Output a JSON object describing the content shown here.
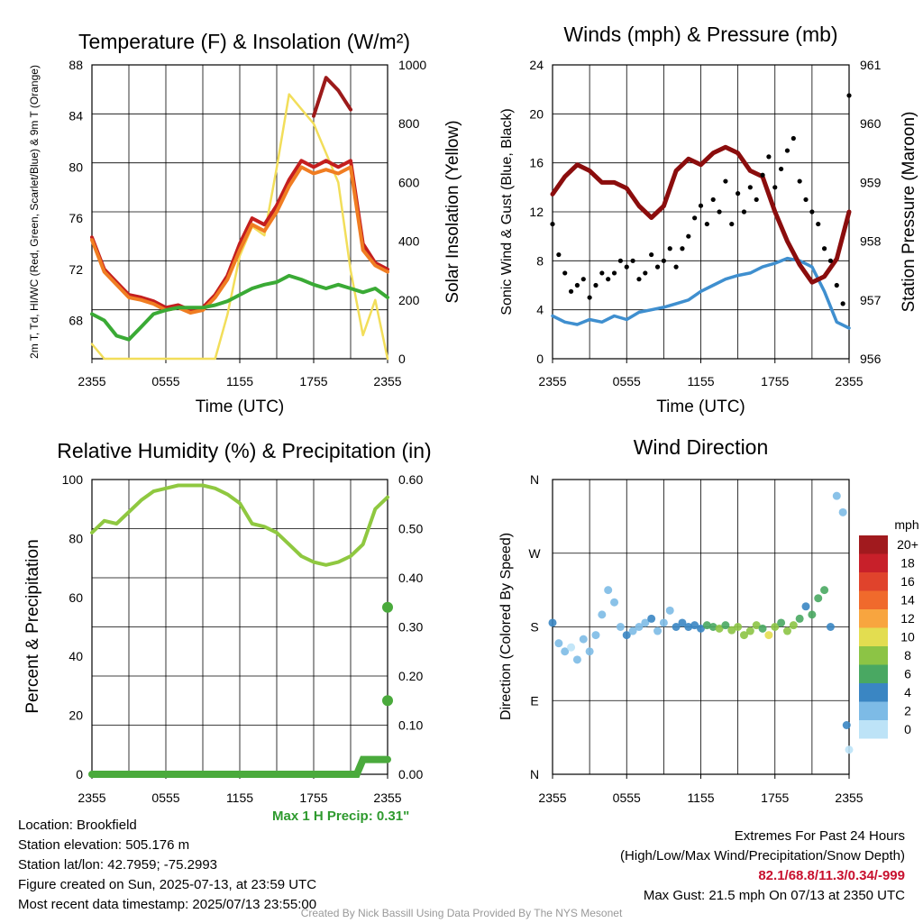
{
  "chart_data": [
    {
      "type": "line",
      "title": "Temperature (F) & Insolation (W/m²)",
      "xlabel": "Time (UTC)",
      "ylabel": "2m T, Td, HI/WC (Red, Green, Scarlet/Blue) & 9m T (Orange)",
      "y2label": "Solar Insolation (Yellow)",
      "xticks": [
        "2355",
        "0555",
        "1155",
        "1755",
        "2355"
      ],
      "ylim": [
        65,
        88
      ],
      "yticks": [
        68,
        72,
        76,
        80,
        84,
        88
      ],
      "y2lim": [
        0,
        1000
      ],
      "y2ticks": [
        0,
        200,
        400,
        600,
        800,
        1000
      ],
      "x_hours": [
        0,
        1,
        2,
        3,
        4,
        5,
        6,
        7,
        8,
        9,
        10,
        11,
        12,
        13,
        14,
        15,
        16,
        17,
        18,
        19,
        20,
        21,
        22,
        23,
        24
      ],
      "series": [
        {
          "color": "#c41e1e",
          "axis": "left",
          "values": [
            74.5,
            72.0,
            71.0,
            70.0,
            69.8,
            69.5,
            69.0,
            69.2,
            68.8,
            69.0,
            70.0,
            71.5,
            74.0,
            76.0,
            75.5,
            77.0,
            79.0,
            80.5,
            80.0,
            80.5,
            80.0,
            80.5,
            74.0,
            72.5,
            72.0
          ]
        },
        {
          "color": "#f07d22",
          "axis": "left",
          "values": [
            74.3,
            71.8,
            70.8,
            69.8,
            69.6,
            69.3,
            68.8,
            69.0,
            68.6,
            68.8,
            69.8,
            71.2,
            73.5,
            75.5,
            75.0,
            76.5,
            78.5,
            80.0,
            79.5,
            79.8,
            79.5,
            80.0,
            73.5,
            72.3,
            71.8
          ]
        },
        {
          "color": "#9c1a1a",
          "axis": "left",
          "values": [
            null,
            null,
            null,
            null,
            null,
            null,
            null,
            null,
            null,
            null,
            null,
            null,
            null,
            null,
            null,
            null,
            null,
            null,
            84.0,
            87.0,
            86.0,
            84.5,
            null,
            null,
            null
          ]
        },
        {
          "color": "#3aaa35",
          "axis": "left",
          "values": [
            68.5,
            68.0,
            66.8,
            66.5,
            67.5,
            68.5,
            68.8,
            69.0,
            69.0,
            69.0,
            69.2,
            69.5,
            70.0,
            70.5,
            70.8,
            71.0,
            71.5,
            71.2,
            70.8,
            70.5,
            70.8,
            70.5,
            70.2,
            70.5,
            69.8
          ]
        },
        {
          "color": "#f2de5a",
          "axis": "right",
          "values": [
            50,
            0,
            0,
            0,
            0,
            0,
            0,
            0,
            0,
            0,
            0,
            150,
            350,
            450,
            420,
            650,
            900,
            850,
            800,
            700,
            600,
            300,
            80,
            200,
            0
          ]
        }
      ]
    },
    {
      "type": "line",
      "title": "Winds (mph) & Pressure (mb)",
      "xlabel": "Time (UTC)",
      "ylabel": "Sonic Wind & Gust (Blue, Black)",
      "y2label": "Station Pressure (Maroon)",
      "xticks": [
        "2355",
        "0555",
        "1155",
        "1755",
        "2355"
      ],
      "ylim": [
        0,
        24
      ],
      "yticks": [
        0,
        4,
        8,
        12,
        16,
        20,
        24
      ],
      "y2lim": [
        956,
        961
      ],
      "y2ticks": [
        956,
        957,
        958,
        959,
        960,
        961
      ],
      "x_hours": [
        0,
        1,
        2,
        3,
        4,
        5,
        6,
        7,
        8,
        9,
        10,
        11,
        12,
        13,
        14,
        15,
        16,
        17,
        18,
        19,
        20,
        21,
        22,
        23,
        24
      ],
      "series": [
        {
          "color": "#3f8fcf",
          "axis": "left",
          "values": [
            3.5,
            3.0,
            2.8,
            3.2,
            3.0,
            3.5,
            3.2,
            3.8,
            4.0,
            4.2,
            4.5,
            4.8,
            5.5,
            6.0,
            6.5,
            6.8,
            7.0,
            7.5,
            7.8,
            8.2,
            8.0,
            7.5,
            5.5,
            3.0,
            2.5
          ]
        },
        {
          "color": "#8b0d0d",
          "axis": "right",
          "values": [
            958.8,
            959.1,
            959.3,
            959.2,
            959.0,
            959.0,
            958.9,
            958.6,
            958.4,
            958.6,
            959.2,
            959.4,
            959.3,
            959.5,
            959.6,
            959.5,
            959.2,
            959.1,
            958.5,
            958.0,
            957.6,
            957.3,
            957.4,
            957.7,
            958.5
          ]
        }
      ],
      "gust": [
        [
          0,
          11.0
        ],
        [
          0.5,
          8.5
        ],
        [
          1.0,
          7.0
        ],
        [
          1.5,
          5.5
        ],
        [
          2.0,
          6.0
        ],
        [
          2.5,
          6.5
        ],
        [
          3.0,
          5.0
        ],
        [
          3.5,
          6.0
        ],
        [
          4.0,
          7.0
        ],
        [
          4.5,
          6.5
        ],
        [
          5.0,
          7.0
        ],
        [
          5.5,
          8.0
        ],
        [
          6.0,
          7.5
        ],
        [
          6.5,
          8.0
        ],
        [
          7.0,
          6.5
        ],
        [
          7.5,
          7.0
        ],
        [
          8.0,
          8.5
        ],
        [
          8.5,
          7.5
        ],
        [
          9.0,
          8.0
        ],
        [
          9.5,
          9.0
        ],
        [
          10.0,
          7.5
        ],
        [
          10.5,
          9.0
        ],
        [
          11.0,
          10.0
        ],
        [
          11.5,
          11.5
        ],
        [
          12.0,
          12.5
        ],
        [
          12.5,
          11.0
        ],
        [
          13.0,
          13.0
        ],
        [
          13.5,
          12.0
        ],
        [
          14.0,
          14.5
        ],
        [
          14.5,
          11.0
        ],
        [
          15.0,
          13.5
        ],
        [
          15.5,
          12.0
        ],
        [
          16.0,
          14.0
        ],
        [
          16.5,
          13.0
        ],
        [
          17.0,
          15.0
        ],
        [
          17.5,
          16.5
        ],
        [
          18.0,
          14.0
        ],
        [
          18.5,
          15.5
        ],
        [
          19.0,
          17.0
        ],
        [
          19.5,
          18.0
        ],
        [
          20.0,
          14.5
        ],
        [
          20.5,
          13.0
        ],
        [
          21.0,
          12.0
        ],
        [
          21.5,
          11.0
        ],
        [
          22.0,
          9.0
        ],
        [
          22.5,
          8.0
        ],
        [
          23.0,
          6.0
        ],
        [
          23.5,
          4.5
        ],
        [
          24.0,
          21.5
        ]
      ]
    },
    {
      "type": "line",
      "title": "Relative Humidity (%) & Precipitation (in)",
      "xlabel": "",
      "ylabel": "Percent & Precipitation",
      "xticks": [
        "2355",
        "0555",
        "1155",
        "1755",
        "2355"
      ],
      "ylim": [
        0,
        100
      ],
      "yticks": [
        0,
        20,
        40,
        60,
        80,
        100
      ],
      "y2lim": [
        0,
        0.6
      ],
      "y2ticks": [
        "0.00",
        "0.10",
        "0.20",
        "0.30",
        "0.40",
        "0.50",
        "0.60"
      ],
      "x_hours": [
        0,
        1,
        2,
        3,
        4,
        5,
        6,
        7,
        8,
        9,
        10,
        11,
        12,
        13,
        14,
        15,
        16,
        17,
        18,
        19,
        20,
        21,
        22,
        23,
        24
      ],
      "series": [
        {
          "color": "#8fc840",
          "axis": "left",
          "values": [
            82,
            86,
            85,
            89,
            93,
            96,
            97,
            98,
            98,
            98,
            97,
            95,
            92,
            85,
            84,
            82,
            78,
            74,
            72,
            71,
            72,
            74,
            78,
            90,
            94
          ]
        }
      ],
      "precip_accum": [
        [
          0,
          0
        ],
        [
          21.5,
          0
        ],
        [
          22.0,
          0.03
        ],
        [
          24.0,
          0.03
        ]
      ],
      "precip_hourly_max": [
        [
          24,
          0.15
        ],
        [
          24,
          0.34
        ]
      ],
      "max_precip_label": "Max 1 H Precip: 0.31\""
    },
    {
      "type": "scatter",
      "title": "Wind Direction",
      "xlabel": "",
      "ylabel": "Direction (Colored By Speed)",
      "xticks": [
        "2355",
        "0555",
        "1155",
        "1755",
        "2355"
      ],
      "yticks": [
        "N",
        "E",
        "S",
        "W",
        "N"
      ],
      "ylim": [
        0,
        360
      ],
      "legend": {
        "title": "mph",
        "labels": [
          "20+",
          "18",
          "16",
          "14",
          "12",
          "10",
          "8",
          "6",
          "4",
          "2",
          "0"
        ],
        "colors": [
          "#a11a1e",
          "#c8202a",
          "#e0432c",
          "#f06a2c",
          "#f8a53f",
          "#e3dd50",
          "#8cc445",
          "#49a862",
          "#3a86c3",
          "#7dbbe6",
          "#bde3f7"
        ]
      },
      "points": [
        [
          0,
          185,
          4
        ],
        [
          0.5,
          160,
          2
        ],
        [
          1.0,
          150,
          2
        ],
        [
          1.5,
          155,
          1
        ],
        [
          2.0,
          140,
          2
        ],
        [
          2.5,
          165,
          3
        ],
        [
          3.0,
          150,
          2
        ],
        [
          3.5,
          170,
          2
        ],
        [
          4.0,
          195,
          3
        ],
        [
          4.5,
          225,
          2
        ],
        [
          5.0,
          210,
          2
        ],
        [
          5.5,
          180,
          3
        ],
        [
          6.0,
          170,
          4
        ],
        [
          6.5,
          175,
          3
        ],
        [
          7.0,
          180,
          2
        ],
        [
          7.5,
          185,
          3
        ],
        [
          8.0,
          190,
          4
        ],
        [
          8.5,
          175,
          3
        ],
        [
          9.0,
          185,
          2
        ],
        [
          9.5,
          200,
          3
        ],
        [
          10.0,
          180,
          4
        ],
        [
          10.5,
          185,
          4
        ],
        [
          11.0,
          180,
          4
        ],
        [
          11.5,
          182,
          5
        ],
        [
          12.0,
          178,
          4
        ],
        [
          12.5,
          182,
          6
        ],
        [
          13.0,
          180,
          7
        ],
        [
          13.5,
          178,
          8
        ],
        [
          14.0,
          182,
          7
        ],
        [
          14.5,
          176,
          8
        ],
        [
          15.0,
          180,
          9
        ],
        [
          15.5,
          170,
          8
        ],
        [
          16.0,
          175,
          9
        ],
        [
          16.5,
          182,
          8
        ],
        [
          17.0,
          178,
          7
        ],
        [
          17.5,
          170,
          10
        ],
        [
          18.0,
          180,
          8
        ],
        [
          18.5,
          185,
          7
        ],
        [
          19.0,
          175,
          9
        ],
        [
          19.5,
          182,
          8
        ],
        [
          20.0,
          190,
          6
        ],
        [
          20.5,
          205,
          5
        ],
        [
          21.0,
          195,
          7
        ],
        [
          21.5,
          215,
          6
        ],
        [
          22.0,
          225,
          7
        ],
        [
          22.5,
          180,
          4
        ],
        [
          23.0,
          340,
          3
        ],
        [
          23.5,
          320,
          2
        ],
        [
          23.8,
          60,
          4
        ],
        [
          24.0,
          30,
          1
        ]
      ]
    }
  ],
  "info": {
    "location": "Location: Brookfield",
    "elevation": "Station elevation: 505.176 m",
    "latlon": "Station lat/lon: 42.7959; -75.2993",
    "created": "Figure created on Sun, 2025-07-13, at 23:59 UTC",
    "recent": "Most recent data timestamp: 2025/07/13 23:55:00"
  },
  "extremes": {
    "heading": "Extremes For Past 24 Hours",
    "subheading": "(High/Low/Max Wind/Precipitation/Snow Depth)",
    "values": "82.1/68.8/11.3/0.34/-999",
    "gust": "Max Gust: 21.5 mph On 07/13 at 2350 UTC"
  },
  "credit": "Created By Nick Bassill Using Data Provided By The NYS Mesonet"
}
